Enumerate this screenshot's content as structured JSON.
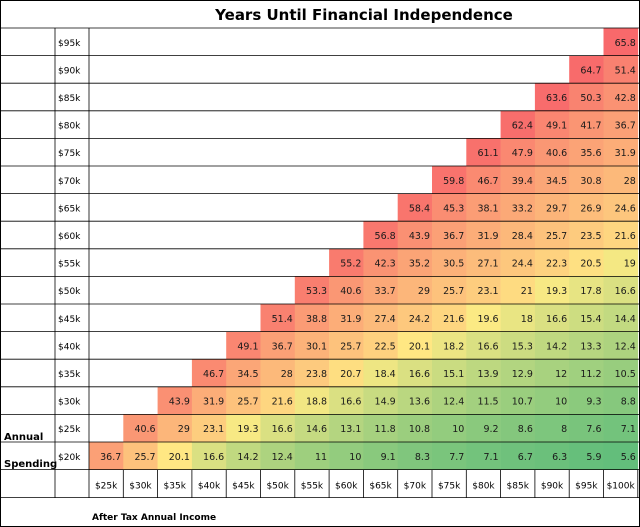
{
  "chart_data": {
    "type": "heatmap",
    "title": "Years Until Financial Independence",
    "xlabel": "After Tax Annual Income",
    "ylabel_lines": [
      "Annual",
      "Spending"
    ],
    "x_categories": [
      "$25k",
      "$30k",
      "$35k",
      "$40k",
      "$45k",
      "$50k",
      "$55k",
      "$60k",
      "$65k",
      "$70k",
      "$75k",
      "$80k",
      "$85k",
      "$90k",
      "$95k",
      "$100k"
    ],
    "y_categories": [
      "$95k",
      "$90k",
      "$85k",
      "$80k",
      "$75k",
      "$70k",
      "$65k",
      "$60k",
      "$55k",
      "$50k",
      "$45k",
      "$40k",
      "$35k",
      "$30k",
      "$25k",
      "$20k"
    ],
    "values": [
      [
        null,
        null,
        null,
        null,
        null,
        null,
        null,
        null,
        null,
        null,
        null,
        null,
        null,
        null,
        null,
        65.8
      ],
      [
        null,
        null,
        null,
        null,
        null,
        null,
        null,
        null,
        null,
        null,
        null,
        null,
        null,
        null,
        64.7,
        51.4
      ],
      [
        null,
        null,
        null,
        null,
        null,
        null,
        null,
        null,
        null,
        null,
        null,
        null,
        null,
        63.6,
        50.3,
        42.8
      ],
      [
        null,
        null,
        null,
        null,
        null,
        null,
        null,
        null,
        null,
        null,
        null,
        null,
        62.4,
        49.1,
        41.7,
        36.7
      ],
      [
        null,
        null,
        null,
        null,
        null,
        null,
        null,
        null,
        null,
        null,
        null,
        61.1,
        47.9,
        40.6,
        35.6,
        31.9
      ],
      [
        null,
        null,
        null,
        null,
        null,
        null,
        null,
        null,
        null,
        null,
        59.8,
        46.7,
        39.4,
        34.5,
        30.8,
        28
      ],
      [
        null,
        null,
        null,
        null,
        null,
        null,
        null,
        null,
        null,
        58.4,
        45.3,
        38.1,
        33.2,
        29.7,
        26.9,
        24.6
      ],
      [
        null,
        null,
        null,
        null,
        null,
        null,
        null,
        null,
        56.8,
        43.9,
        36.7,
        31.9,
        28.4,
        25.7,
        23.5,
        21.6
      ],
      [
        null,
        null,
        null,
        null,
        null,
        null,
        null,
        55.2,
        42.3,
        35.2,
        30.5,
        27.1,
        24.4,
        22.3,
        20.5,
        19
      ],
      [
        null,
        null,
        null,
        null,
        null,
        null,
        53.3,
        40.6,
        33.7,
        29,
        25.7,
        23.1,
        21,
        19.3,
        17.8,
        16.6
      ],
      [
        null,
        null,
        null,
        null,
        null,
        51.4,
        38.8,
        31.9,
        27.4,
        24.2,
        21.6,
        19.6,
        18,
        16.6,
        15.4,
        14.4
      ],
      [
        null,
        null,
        null,
        null,
        49.1,
        36.7,
        30.1,
        25.7,
        22.5,
        20.1,
        18.2,
        16.6,
        15.3,
        14.2,
        13.3,
        12.4
      ],
      [
        null,
        null,
        null,
        46.7,
        34.5,
        28,
        23.8,
        20.7,
        18.4,
        16.6,
        15.1,
        13.9,
        12.9,
        12,
        11.2,
        10.5
      ],
      [
        null,
        null,
        43.9,
        31.9,
        25.7,
        21.6,
        18.8,
        16.6,
        14.9,
        13.6,
        12.4,
        11.5,
        10.7,
        10,
        9.3,
        8.8
      ],
      [
        null,
        40.6,
        29,
        23.1,
        19.3,
        16.6,
        14.6,
        13.1,
        11.8,
        10.8,
        10,
        9.2,
        8.6,
        8,
        7.6,
        7.1
      ],
      [
        36.7,
        25.7,
        20.1,
        16.6,
        14.2,
        12.4,
        11,
        10,
        9.1,
        8.3,
        7.7,
        7.1,
        6.7,
        6.3,
        5.9,
        5.6
      ]
    ],
    "color_scale": {
      "low": "#63be7b",
      "mid": "#ffeb84",
      "high": "#f8696b"
    },
    "grid": true
  }
}
